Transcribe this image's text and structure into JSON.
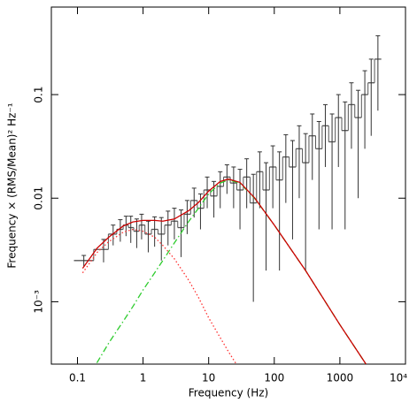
{
  "chart_data": {
    "type": "spectrum",
    "x_label": "Frequency (Hz)",
    "y_label": "Frequency × (RMS/Mean)² Hz⁻¹",
    "log_x": true,
    "log_y": true,
    "xlim": [
      0.04,
      10000
    ],
    "ylim": [
      0.00025,
      0.7
    ],
    "xticks": [
      0.1,
      1,
      10,
      100,
      1000,
      {
        "value": 10000,
        "label": "10⁴"
      }
    ],
    "yticks": [
      {
        "value": 0.001,
        "label": "10⁻³"
      },
      0.01,
      0.1
    ],
    "data_color": "#555555",
    "x": [
      0.125,
      0.25,
      0.35,
      0.45,
      0.55,
      0.65,
      0.8,
      0.95,
      1.2,
      1.5,
      1.9,
      2.4,
      3,
      3.8,
      4.7,
      6,
      7.5,
      9.5,
      12,
      15,
      19,
      24,
      30,
      38,
      48,
      60,
      75,
      95,
      120,
      150,
      190,
      240,
      300,
      380,
      480,
      600,
      760,
      950,
      1200,
      1500,
      1900,
      2400,
      3000,
      3800
    ],
    "values": [
      0.0025,
      0.0032,
      0.0045,
      0.005,
      0.0055,
      0.0052,
      0.0048,
      0.0055,
      0.0045,
      0.005,
      0.0045,
      0.0055,
      0.006,
      0.0052,
      0.007,
      0.0095,
      0.008,
      0.012,
      0.0105,
      0.013,
      0.016,
      0.014,
      0.012,
      0.016,
      0.009,
      0.018,
      0.012,
      0.02,
      0.015,
      0.025,
      0.02,
      0.03,
      0.022,
      0.04,
      0.03,
      0.05,
      0.035,
      0.06,
      0.045,
      0.08,
      0.06,
      0.1,
      0.13,
      0.22
    ],
    "errors": [
      0.0003,
      0.0008,
      0.001,
      0.0012,
      0.0012,
      0.0015,
      0.0015,
      0.0015,
      0.0015,
      0.0016,
      0.002,
      0.002,
      0.002,
      0.0025,
      0.0025,
      0.003,
      0.003,
      0.004,
      0.004,
      0.005,
      0.005,
      0.006,
      0.007,
      0.008,
      0.008,
      0.01,
      0.01,
      0.012,
      0.013,
      0.016,
      0.016,
      0.02,
      0.02,
      0.025,
      0.025,
      0.03,
      0.03,
      0.04,
      0.04,
      0.05,
      0.05,
      0.07,
      0.09,
      0.15
    ],
    "model_x": [
      0.12,
      0.2,
      0.3,
      0.5,
      0.7,
      1,
      1.5,
      2,
      3,
      5,
      7,
      10,
      15,
      20,
      30,
      50,
      100,
      300,
      1000,
      2500
    ],
    "models": [
      {
        "color": "#2ecc2e",
        "style": "dash-dot",
        "values": [
          0.00016,
          0.00026,
          0.0004,
          0.00065,
          0.0009,
          0.0013,
          0.0019,
          0.0025,
          0.0037,
          0.006,
          0.008,
          0.011,
          0.014,
          0.015,
          0.014,
          0.01,
          0.0055,
          0.002,
          0.0006,
          0.00025
        ]
      },
      {
        "color": "#ff3030",
        "style": "dotted",
        "values": [
          0.0019,
          0.003,
          0.0038,
          0.0047,
          0.005,
          0.0048,
          0.0042,
          0.0035,
          0.0026,
          0.0016,
          0.0011,
          0.0007,
          0.00045,
          0.00033,
          0.00022,
          null,
          null,
          null,
          null,
          null
        ]
      },
      {
        "color": "#cc0000",
        "style": "solid",
        "values": [
          0.0021,
          0.0033,
          0.0042,
          0.0054,
          0.0059,
          0.0061,
          0.0061,
          0.006,
          0.0063,
          0.0076,
          0.0091,
          0.0117,
          0.0145,
          0.0153,
          0.0142,
          0.0101,
          0.0055,
          0.002,
          0.0006,
          0.00025
        ]
      }
    ]
  }
}
